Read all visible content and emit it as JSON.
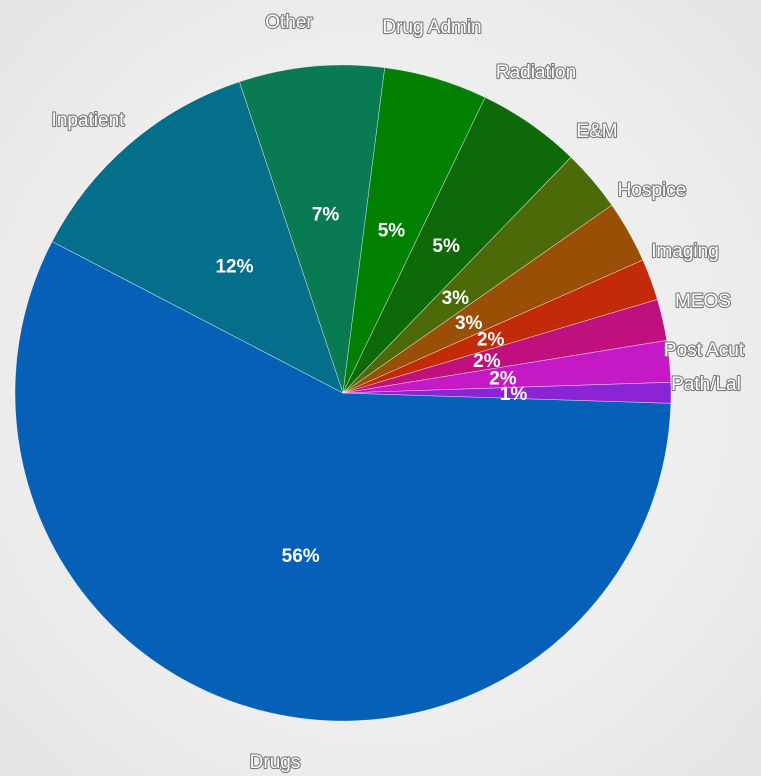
{
  "chart_data": {
    "type": "pie",
    "slices": [
      {
        "label": "Drugs",
        "value": 56,
        "pct_label": "56%",
        "color": "#0660b8"
      },
      {
        "label": "Inpatient",
        "value": 12,
        "pct_label": "12%",
        "color": "#056e8a"
      },
      {
        "label": "Other",
        "value": 7,
        "pct_label": "7%",
        "color": "#0a7a52"
      },
      {
        "label": "Drug Admin",
        "value": 5,
        "pct_label": "5%",
        "color": "#028001"
      },
      {
        "label": "Radiation",
        "value": 5,
        "pct_label": "5%",
        "color": "#0e6a09"
      },
      {
        "label": "E&M",
        "value": 3,
        "pct_label": "3%",
        "color": "#4d6a08"
      },
      {
        "label": "Hospice",
        "value": 3,
        "pct_label": "3%",
        "color": "#9a4f07"
      },
      {
        "label": "Imaging",
        "value": 2,
        "pct_label": "2%",
        "color": "#c32a07"
      },
      {
        "label": "MEOS",
        "value": 2,
        "pct_label": "2%",
        "color": "#c0107e"
      },
      {
        "label": "Post Acut",
        "value": 2,
        "pct_label": "2%",
        "color": "#c419c5"
      },
      {
        "label": "Path/Lal",
        "value": 1,
        "pct_label": "1%",
        "color": "#8b24d6"
      }
    ]
  }
}
